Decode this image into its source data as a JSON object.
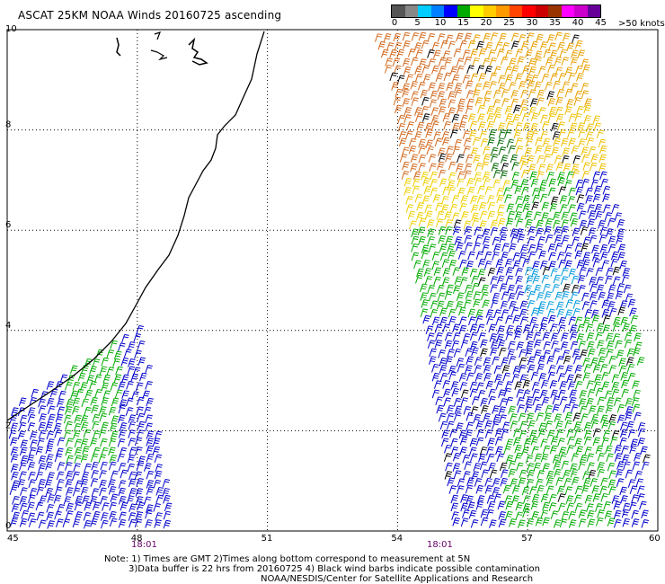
{
  "header": {
    "title": "ASCAT 25KM NOAA Winds 20160725 ascending"
  },
  "legend": {
    "labels": [
      "0",
      "5",
      "10",
      "15",
      "20",
      "25",
      "30",
      "35",
      "40",
      "45"
    ],
    "units": ">50 knots",
    "colors": [
      "#555555",
      "#888888",
      "#00ccff",
      "#0080ff",
      "#0000ff",
      "#00aa00",
      "#ffff00",
      "#ffcc00",
      "#ff9900",
      "#ff4400",
      "#ff0000",
      "#cc0000",
      "#993300",
      "#ff00ff",
      "#cc00cc",
      "#660099"
    ]
  },
  "axes": {
    "x_ticks": [
      "45",
      "48",
      "51",
      "54",
      "57",
      "60"
    ],
    "y_ticks": [
      "0",
      "2",
      "4",
      "6",
      "8",
      "10"
    ],
    "x_range": [
      45,
      60
    ],
    "y_range": [
      0,
      10
    ]
  },
  "swath_times": [
    "18:01",
    "18:01"
  ],
  "notes": {
    "line1": "Note: 1) Times are GMT 2)Times along bottom correspond to measurement at 5N",
    "line2": "3)Data buffer is 22 hrs from 20160725 4) Black wind barbs indicate possible contamination",
    "line3": "NOAA/NESDIS/Center for Satellite Applications and Research"
  },
  "colors": {
    "coast": "#000000",
    "time_label": "#660066",
    "grid": "#000000"
  }
}
